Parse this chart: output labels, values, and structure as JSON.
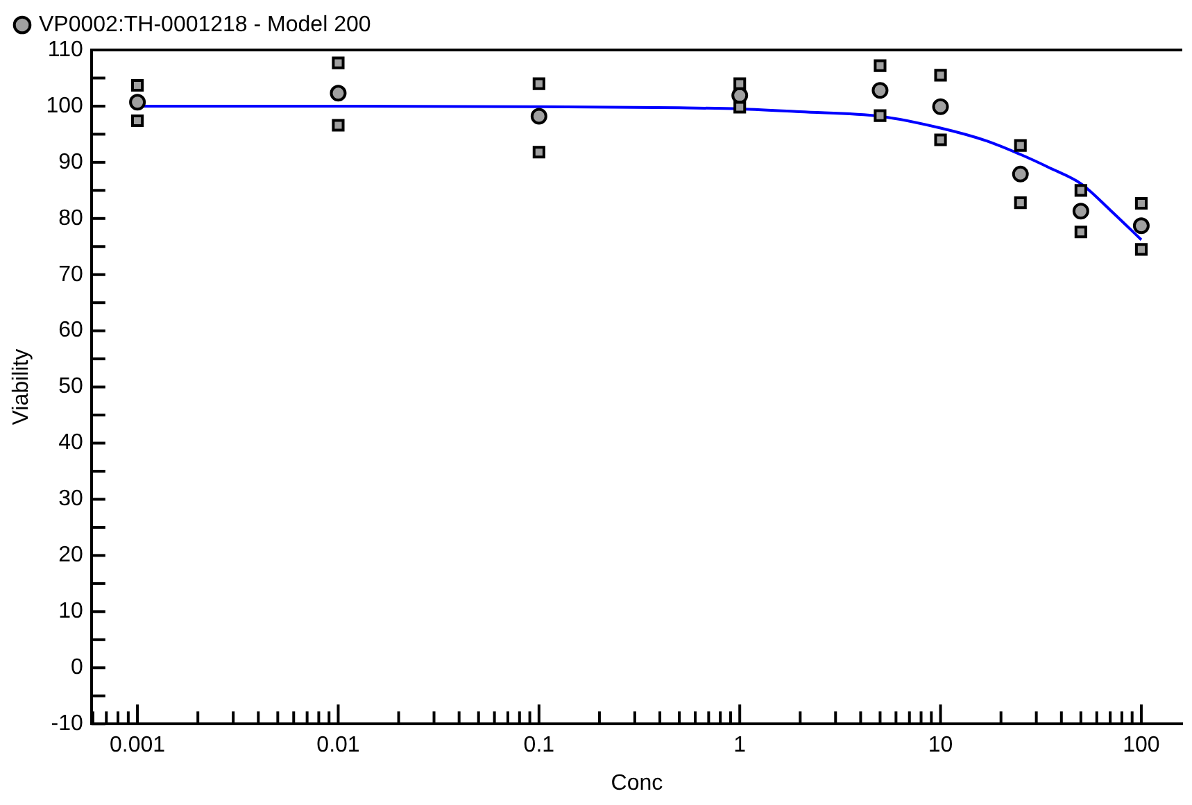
{
  "chart_data": {
    "type": "scatter",
    "xlabel": "Conc",
    "ylabel": "Viability",
    "log": "x",
    "grid": false,
    "legend": "top left",
    "xlim": [
      0.00059,
      160
    ],
    "xticks": [
      {
        "value": 0.0006,
        "label": null
      },
      {
        "value": 0.0007,
        "label": null
      },
      {
        "value": 0.0008,
        "label": null
      },
      {
        "value": 0.0009,
        "label": null
      },
      0.001,
      {
        "value": 0.002,
        "label": null
      },
      {
        "value": 0.003,
        "label": null
      },
      {
        "value": 0.004,
        "label": null
      },
      {
        "value": 0.005,
        "label": null
      },
      {
        "value": 0.006,
        "label": null
      },
      {
        "value": 0.007,
        "label": null
      },
      {
        "value": 0.008,
        "label": null
      },
      {
        "value": 0.009,
        "label": null
      },
      0.01,
      {
        "value": 0.02,
        "label": null
      },
      {
        "value": 0.03,
        "label": null
      },
      {
        "value": 0.04,
        "label": null
      },
      {
        "value": 0.05,
        "label": null
      },
      {
        "value": 0.06,
        "label": null
      },
      {
        "value": 0.07,
        "label": null
      },
      {
        "value": 0.08,
        "label": null
      },
      {
        "value": 0.09,
        "label": null
      },
      0.1,
      {
        "value": 0.2,
        "label": null
      },
      {
        "value": 0.3,
        "label": null
      },
      {
        "value": 0.4,
        "label": null
      },
      {
        "value": 0.5,
        "label": null
      },
      {
        "value": 0.6,
        "label": null
      },
      {
        "value": 0.7,
        "label": null
      },
      {
        "value": 0.8,
        "label": null
      },
      {
        "value": 0.9,
        "label": null
      },
      1,
      {
        "value": 2,
        "label": null
      },
      {
        "value": 3,
        "label": null
      },
      {
        "value": 4,
        "label": null
      },
      {
        "value": 5,
        "label": null
      },
      {
        "value": 6,
        "label": null
      },
      {
        "value": 7,
        "label": null
      },
      {
        "value": 8,
        "label": null
      },
      {
        "value": 9,
        "label": null
      },
      10,
      {
        "value": 20,
        "label": null
      },
      {
        "value": 30,
        "label": null
      },
      {
        "value": 40,
        "label": null
      },
      {
        "value": 50,
        "label": null
      },
      {
        "value": 60,
        "label": null
      },
      {
        "value": 70,
        "label": null
      },
      {
        "value": 80,
        "label": null
      },
      {
        "value": 90,
        "label": null
      },
      100
    ],
    "ylim": [
      -10,
      110
    ],
    "yticks": [
      -10,
      {
        "value": -5,
        "label": null
      },
      0,
      {
        "value": 5,
        "label": null
      },
      10,
      {
        "value": 15,
        "label": null
      },
      20,
      {
        "value": 25,
        "label": null
      },
      30,
      {
        "value": 35,
        "label": null
      },
      40,
      {
        "value": 45,
        "label": null
      },
      50,
      {
        "value": 55,
        "label": null
      },
      60,
      {
        "value": 65,
        "label": null
      },
      70,
      {
        "value": 75,
        "label": null
      },
      80,
      {
        "value": 85,
        "label": null
      },
      90,
      {
        "value": 95,
        "label": null
      },
      100,
      {
        "value": 105,
        "label": null
      },
      110
    ],
    "series": [
      {
        "marker": "square",
        "color": "#a0a0a0",
        "x": [
          0.001,
          0.001,
          0.01,
          0.01,
          0.1,
          0.1,
          1,
          1,
          5,
          5,
          10,
          10,
          25,
          25,
          50,
          50,
          100,
          100
        ],
        "values": [
          103.7,
          97.4,
          107.7,
          96.6,
          104,
          91.8,
          104,
          99.8,
          107.2,
          98.3,
          105.5,
          94,
          93,
          82.8,
          85,
          77.6,
          82.7,
          74.5
        ]
      },
      {
        "name": "VP0002:TH-0001218 - Model 200",
        "marker": "circle",
        "color": "#a0a0a0",
        "x": [
          0.001,
          0.01,
          0.1,
          1,
          5,
          10,
          25,
          50,
          100
        ],
        "values": [
          100.7,
          102.3,
          98.2,
          101.9,
          102.8,
          99.9,
          87.9,
          81.3,
          78.7
        ]
      },
      {
        "type": "line",
        "marker": "none",
        "color": "#0000ff",
        "x": [
          0.001,
          0.01,
          0.1,
          0.5,
          1,
          2,
          5,
          10,
          17,
          25,
          35,
          50,
          70,
          100
        ],
        "values": [
          100,
          100,
          99.9,
          99.7,
          99.5,
          99,
          98.2,
          96.1,
          93.8,
          91.4,
          89,
          86.2,
          81.5,
          76.2
        ]
      }
    ]
  }
}
